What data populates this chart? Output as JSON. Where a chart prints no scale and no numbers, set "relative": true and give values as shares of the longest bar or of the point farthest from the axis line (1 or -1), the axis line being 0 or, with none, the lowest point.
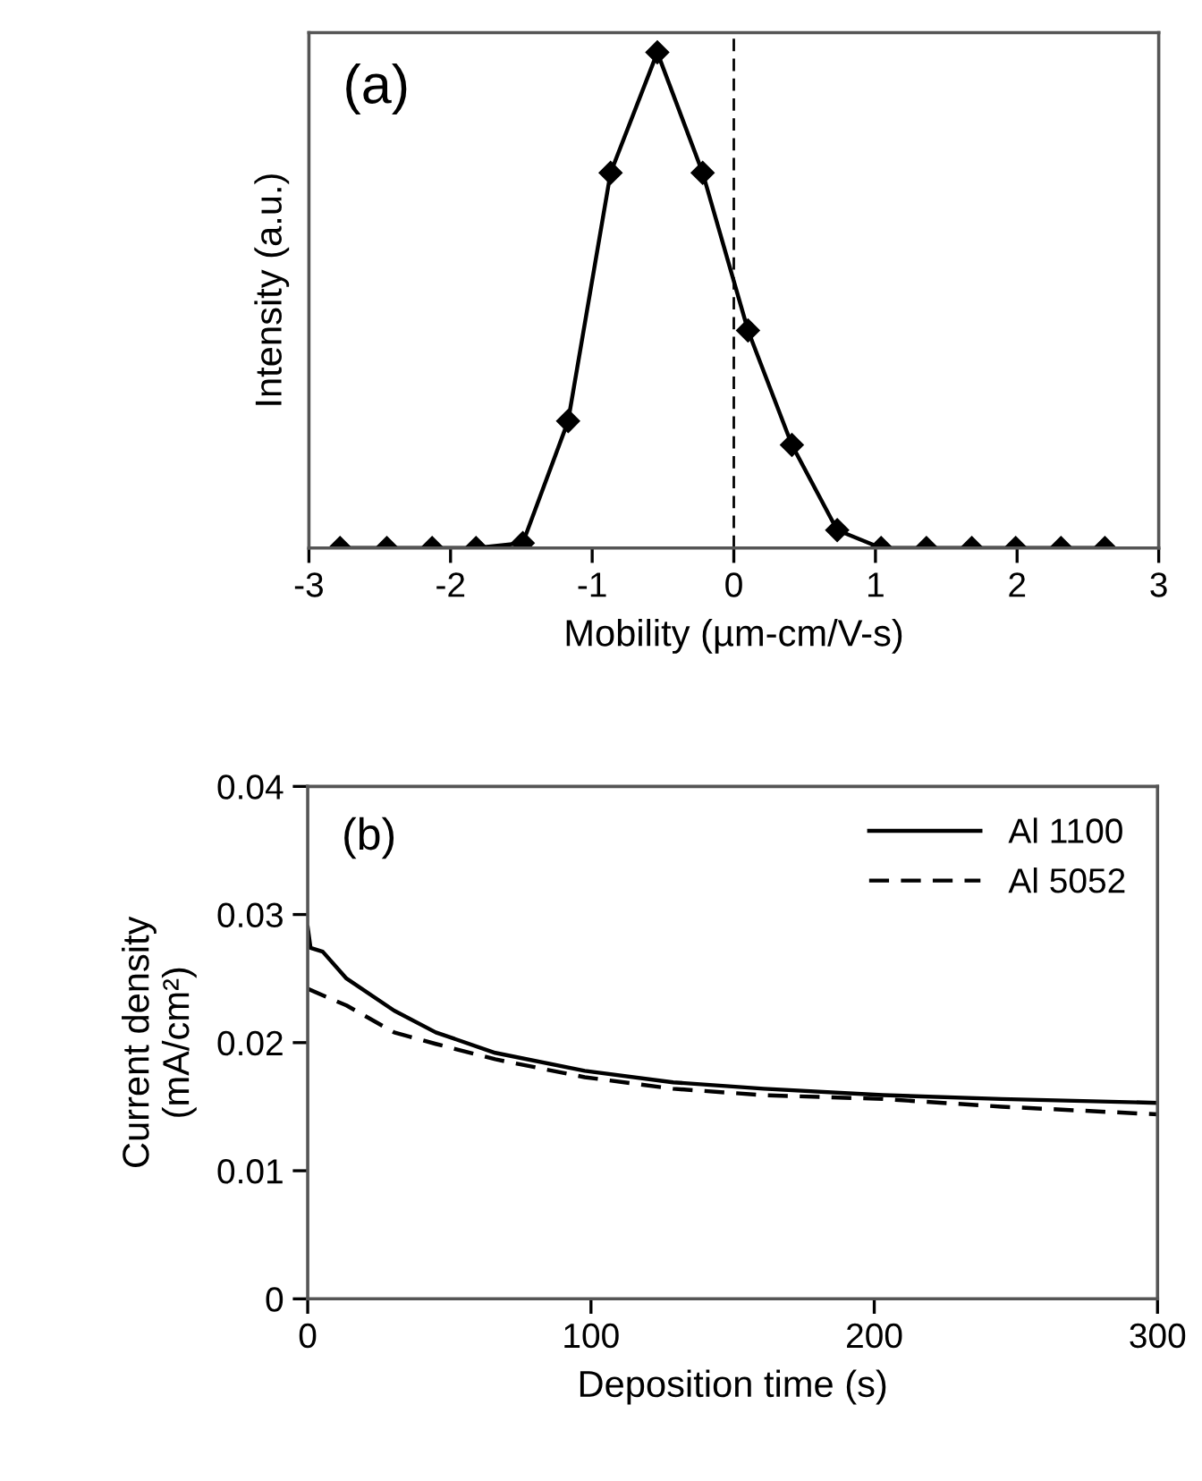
{
  "chart_data": [
    {
      "type": "line",
      "relative": true,
      "xlabel": "Mobility (µm-cm/V-s)",
      "ylabel": "Intensity (a.u.)",
      "annotations": [
        "(a)"
      ],
      "xlim": [
        -3,
        3
      ],
      "xticks": [
        -3,
        -2,
        -1,
        0,
        1,
        2,
        3
      ],
      "tick_labels": "x",
      "grid": false,
      "legend": false,
      "marker": "diamond",
      "line_style": "solid",
      "ref_lines": [
        {
          "axis": "x",
          "value": 0,
          "color": "#000000",
          "line_style": "dashed"
        }
      ],
      "series": [
        {
          "color": "#000000",
          "x": [
            -2.78,
            -2.45,
            -2.13,
            -1.82,
            -1.49,
            -1.17,
            -0.87,
            -0.54,
            -0.22,
            0.1,
            0.41,
            0.73,
            1.04,
            1.36,
            1.68,
            1.99,
            2.31,
            2.62
          ],
          "values": [
            0,
            0,
            0,
            0,
            0.01,
            0.256,
            0.757,
            1,
            0.757,
            0.439,
            0.208,
            0.036,
            0,
            0,
            0,
            0,
            0,
            0
          ]
        }
      ]
    },
    {
      "type": "line",
      "xlabel": "Deposition time (s)",
      "ylabel": "Current density\n(mA/cm²)",
      "annotations": [
        "(b)"
      ],
      "xlim": [
        0,
        300
      ],
      "xticks": [
        0,
        100,
        200,
        300
      ],
      "ylim": [
        0,
        0.04
      ],
      "yticks": [
        0,
        0.01,
        0.02,
        0.03,
        0.04
      ],
      "grid": false,
      "legend": "top right",
      "marker": "none",
      "series": [
        {
          "name": "Al 1100",
          "color": "#000000",
          "line_style": "solid",
          "x": [
            0,
            1,
            5.3,
            13.7,
            30.5,
            45.2,
            66.2,
            97.8,
            129,
            161,
            203,
            245,
            300
          ],
          "values": [
            0.029,
            0.0274,
            0.0271,
            0.025,
            0.0225,
            0.0208,
            0.0192,
            0.0178,
            0.0169,
            0.0164,
            0.0159,
            0.0156,
            0.0153
          ]
        },
        {
          "name": "Al 5052",
          "color": "#000000",
          "line_style": "dashed",
          "x": [
            0,
            13.7,
            30.5,
            45.2,
            66.2,
            97.8,
            129,
            161,
            203,
            245,
            300
          ],
          "values": [
            0.0242,
            0.0229,
            0.0208,
            0.0199,
            0.0187,
            0.0173,
            0.0164,
            0.0159,
            0.0156,
            0.015,
            0.0144
          ]
        }
      ]
    }
  ]
}
